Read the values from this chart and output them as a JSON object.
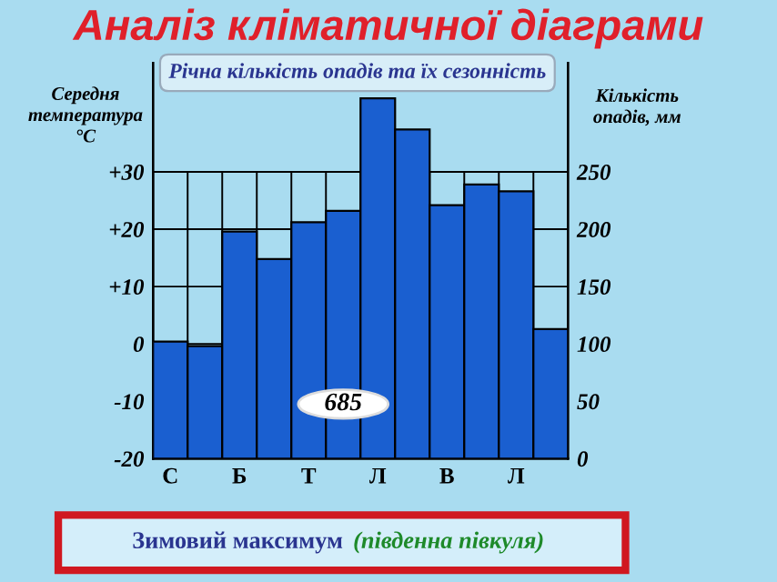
{
  "chart_data": {
    "type": "bar",
    "title": "Аналіз кліматичної діаграми",
    "subtitle": "Річна кількість опадів та їх сезонність",
    "ylabel": "Середня температура °С",
    "y2label": "Кількість опадів, мм",
    "categories": [
      "С",
      null,
      "Б",
      null,
      "Т",
      null,
      "Л",
      null,
      "В",
      null,
      "Л",
      null
    ],
    "series": [
      {
        "color": "#1a5fd0",
        "axis": "y2",
        "values": [
          102,
          98,
          198,
          174,
          206,
          216,
          314,
          287,
          221,
          239,
          233,
          113
        ]
      }
    ],
    "ylim": [
      -20,
      49
    ],
    "yticks": [
      {
        "value": -20,
        "label": "-20"
      },
      {
        "value": -10,
        "label": "-10"
      },
      {
        "value": 0,
        "label": "0"
      },
      {
        "value": 10,
        "label": "+10"
      },
      {
        "value": 20,
        "label": "+20"
      },
      {
        "value": 30,
        "label": "+30"
      }
    ],
    "y2lim": [
      0,
      345
    ],
    "y2ticks": [
      0,
      50,
      100,
      150,
      200,
      250
    ],
    "grid": true,
    "annotations": [
      "685",
      "Зимовий максимум",
      "(південна півкуля)"
    ]
  }
}
